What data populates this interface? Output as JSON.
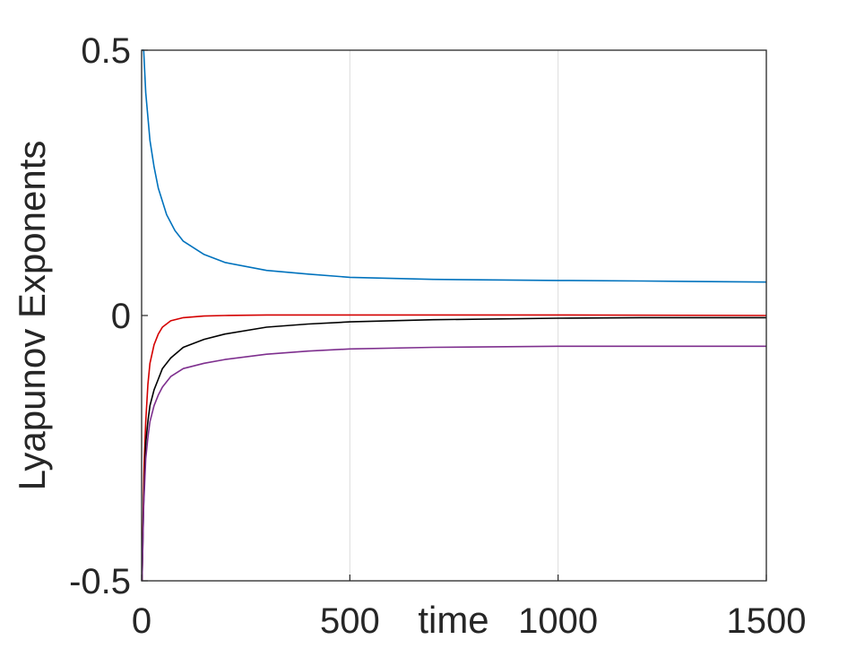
{
  "chart_data": {
    "type": "line",
    "title": "",
    "xlabel": "time",
    "ylabel": "Lyapunov Exponents",
    "xlim": [
      0,
      1500
    ],
    "ylim": [
      -0.5,
      0.5
    ],
    "xticks": [
      0,
      500,
      1000,
      1500
    ],
    "yticks": [
      -0.5,
      0,
      0.5
    ],
    "xtick_labels": [
      "0",
      "500",
      "1000",
      "1500"
    ],
    "ytick_labels": [
      "-0.5",
      "0",
      "0.5"
    ],
    "grid": "x-only",
    "legend": "none",
    "series": [
      {
        "color": "#0072BD",
        "x": [
          1,
          5,
          10,
          20,
          30,
          40,
          60,
          80,
          100,
          150,
          200,
          300,
          400,
          500,
          700,
          1000,
          1200,
          1500
        ],
        "values": [
          0.6,
          0.5,
          0.42,
          0.33,
          0.28,
          0.24,
          0.19,
          0.16,
          0.14,
          0.115,
          0.1,
          0.085,
          0.078,
          0.072,
          0.068,
          0.066,
          0.065,
          0.063
        ]
      },
      {
        "color": "#D40000",
        "x": [
          1,
          3,
          6,
          10,
          15,
          20,
          30,
          40,
          50,
          70,
          100,
          150,
          200,
          300,
          500,
          1000,
          1500
        ],
        "values": [
          -0.52,
          -0.4,
          -0.28,
          -0.2,
          -0.13,
          -0.09,
          -0.055,
          -0.035,
          -0.022,
          -0.01,
          -0.004,
          -0.001,
          0.0,
          0.001,
          0.001,
          0.001,
          0.0
        ]
      },
      {
        "color": "#000000",
        "x": [
          1,
          5,
          10,
          15,
          20,
          30,
          40,
          50,
          70,
          100,
          150,
          200,
          300,
          400,
          500,
          700,
          1000,
          1200,
          1500
        ],
        "values": [
          -0.52,
          -0.35,
          -0.24,
          -0.2,
          -0.17,
          -0.14,
          -0.12,
          -0.1,
          -0.08,
          -0.06,
          -0.045,
          -0.035,
          -0.022,
          -0.016,
          -0.012,
          -0.008,
          -0.005,
          -0.004,
          -0.004
        ]
      },
      {
        "color": "#7E2F8E",
        "x": [
          1,
          5,
          10,
          15,
          20,
          30,
          40,
          50,
          70,
          100,
          150,
          200,
          300,
          400,
          500,
          700,
          1000,
          1200,
          1500
        ],
        "values": [
          -0.5,
          -0.36,
          -0.27,
          -0.23,
          -0.2,
          -0.17,
          -0.15,
          -0.135,
          -0.115,
          -0.1,
          -0.09,
          -0.083,
          -0.073,
          -0.067,
          -0.063,
          -0.06,
          -0.058,
          -0.058,
          -0.058
        ]
      }
    ]
  }
}
